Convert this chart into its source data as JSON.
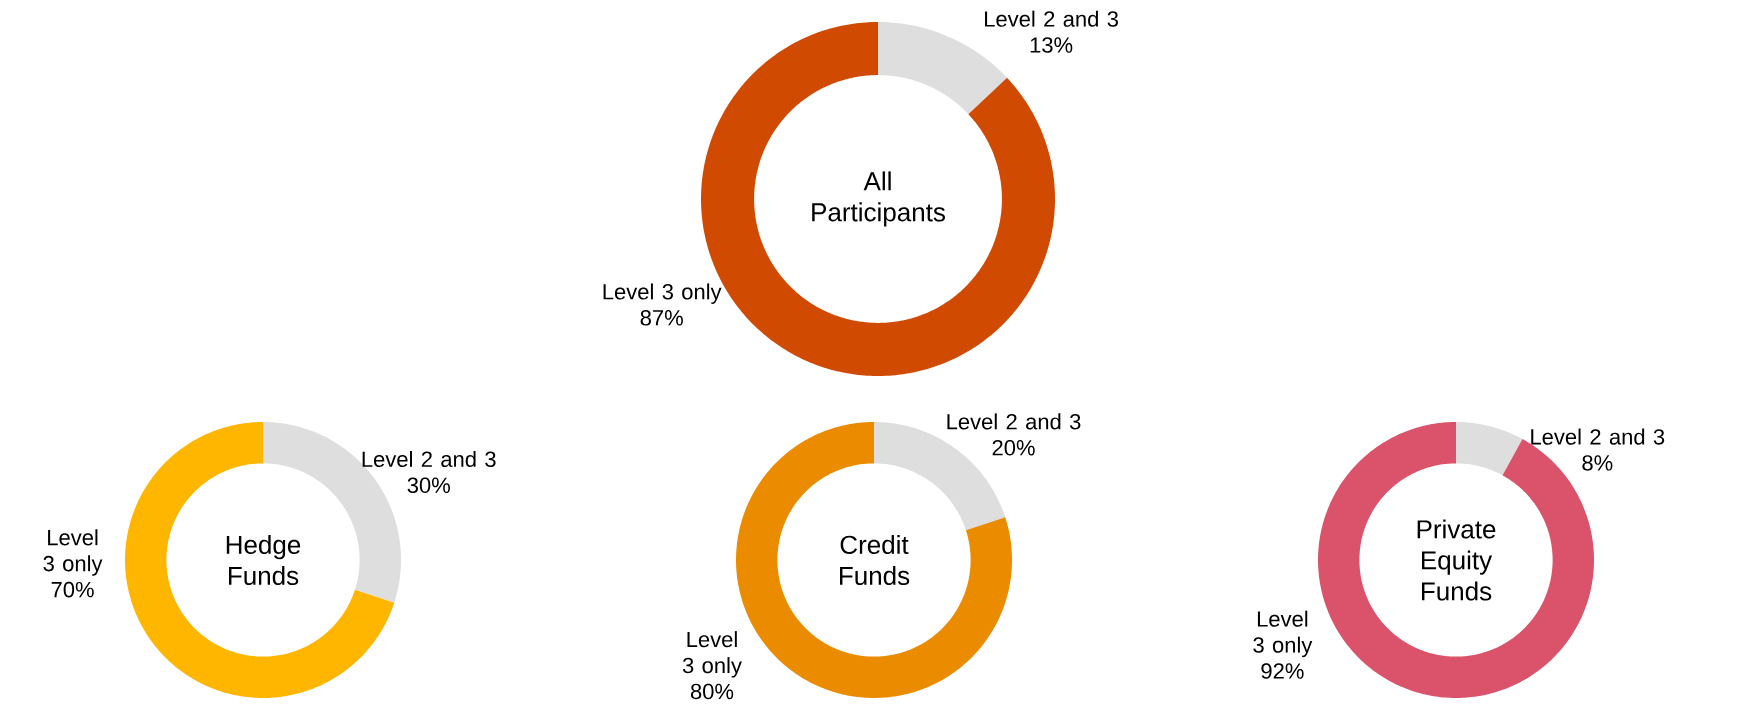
{
  "chart_data": [
    {
      "type": "donut",
      "title": "All Participants",
      "categories": [
        "Level 2 and 3",
        "Level 3 only"
      ],
      "values": [
        13,
        87
      ],
      "colors": [
        "#dedede",
        "#d04a02"
      ],
      "value_labels": [
        "13%",
        "87%"
      ]
    },
    {
      "type": "donut",
      "title": "Hedge Funds",
      "categories": [
        "Level 2 and 3",
        "Level 3 only"
      ],
      "values": [
        30,
        70
      ],
      "colors": [
        "#dedede",
        "#ffb600"
      ],
      "value_labels": [
        "30%",
        "70%"
      ]
    },
    {
      "type": "donut",
      "title": "Credit Funds",
      "categories": [
        "Level 2 and 3",
        "Level 3 only"
      ],
      "values": [
        20,
        80
      ],
      "colors": [
        "#dedede",
        "#eb8c00"
      ],
      "value_labels": [
        "20%",
        "80%"
      ]
    },
    {
      "type": "donut",
      "title": "Private Equity Funds",
      "categories": [
        "Level 2 and 3",
        "Level 3 only"
      ],
      "values": [
        8,
        92
      ],
      "colors": [
        "#dedede",
        "#db536a"
      ],
      "value_labels": [
        "8%",
        "92%"
      ]
    }
  ]
}
